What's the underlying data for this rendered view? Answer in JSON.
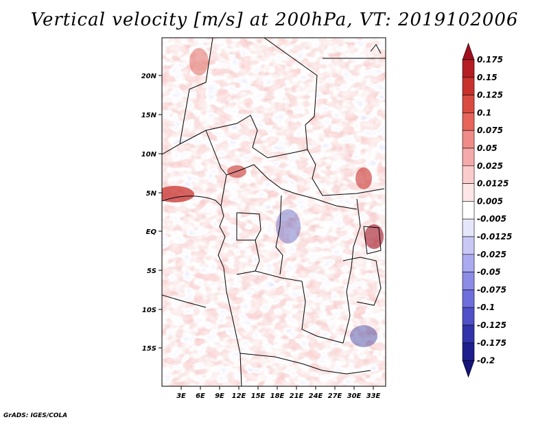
{
  "title": "Vertical velocity [m/s] at 200hPa, VT: 2019102006",
  "footer": "GrADS: IGES/COLA",
  "map": {
    "lat_labels": [
      "20N",
      "15N",
      "10N",
      "5N",
      "EQ",
      "5S",
      "10S",
      "15S"
    ],
    "lon_labels": [
      "3E",
      "6E",
      "9E",
      "12E",
      "15E",
      "18E",
      "21E",
      "24E",
      "27E",
      "30E",
      "33E"
    ]
  },
  "colorbar": {
    "labels": [
      "0.175",
      "0.15",
      "0.125",
      "0.1",
      "0.075",
      "0.05",
      "0.025",
      "0.0125",
      "0.005",
      "-0.005",
      "-0.0125",
      "-0.025",
      "-0.05",
      "-0.075",
      "-0.1",
      "-0.125",
      "-0.175",
      "-0.2"
    ],
    "colors": [
      "#a00f1e",
      "#b41e23",
      "#c8322d",
      "#d94b41",
      "#e6645a",
      "#ef8c87",
      "#f5aaaa",
      "#fbcccc",
      "#fde6e6",
      "#ffffff",
      "#e6e6fb",
      "#c8c8f5",
      "#aaaaf0",
      "#8c8ce6",
      "#6e6edc",
      "#5050c8",
      "#3232aa",
      "#1e1e8c",
      "#14147a"
    ]
  }
}
